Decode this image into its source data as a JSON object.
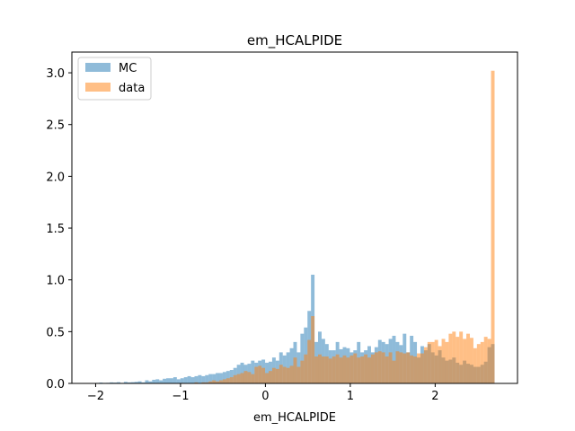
{
  "chart_data": {
    "type": "bar",
    "title": "em_HCALPIDE",
    "xlabel": "em_HCALPIDE",
    "ylabel": "",
    "xlim": [
      -2.28,
      2.97
    ],
    "ylim": [
      0,
      3.2
    ],
    "xticks": [
      -2,
      -1,
      0,
      1,
      2
    ],
    "yticks": [
      0.0,
      0.5,
      1.0,
      1.5,
      2.0,
      2.5,
      3.0
    ],
    "xtick_labels": [
      "−2",
      "−1",
      "0",
      "1",
      "2"
    ],
    "ytick_labels": [
      "0.0",
      "0.5",
      "1.0",
      "1.5",
      "2.0",
      "2.5",
      "3.0"
    ],
    "grid": false,
    "legend_position": "top-left",
    "bin_start": -2.0,
    "bin_end": 2.7,
    "series": [
      {
        "name": "MC",
        "color": "#1f77b4",
        "opacity": 0.5,
        "values": [
          0.005,
          0.008,
          0.005,
          0.006,
          0.01,
          0.008,
          0.012,
          0.005,
          0.015,
          0.01,
          0.012,
          0.015,
          0.02,
          0.01,
          0.03,
          0.02,
          0.035,
          0.04,
          0.03,
          0.045,
          0.05,
          0.05,
          0.06,
          0.04,
          0.05,
          0.06,
          0.07,
          0.06,
          0.07,
          0.08,
          0.07,
          0.08,
          0.09,
          0.09,
          0.1,
          0.1,
          0.11,
          0.12,
          0.13,
          0.15,
          0.18,
          0.2,
          0.18,
          0.19,
          0.22,
          0.2,
          0.22,
          0.23,
          0.2,
          0.21,
          0.25,
          0.22,
          0.3,
          0.27,
          0.3,
          0.34,
          0.4,
          0.3,
          0.48,
          0.54,
          0.7,
          1.05,
          0.4,
          0.5,
          0.43,
          0.38,
          0.32,
          0.32,
          0.4,
          0.33,
          0.35,
          0.34,
          0.3,
          0.32,
          0.4,
          0.3,
          0.32,
          0.36,
          0.3,
          0.35,
          0.42,
          0.4,
          0.38,
          0.43,
          0.46,
          0.4,
          0.37,
          0.48,
          0.3,
          0.46,
          0.4,
          0.25,
          0.36,
          0.32,
          0.38,
          0.3,
          0.27,
          0.32,
          0.25,
          0.22,
          0.23,
          0.25,
          0.2,
          0.18,
          0.22,
          0.19,
          0.18,
          0.16,
          0.16,
          0.18,
          0.21,
          0.35,
          0.38
        ]
      },
      {
        "name": "data",
        "color": "#ff7f0e",
        "opacity": 0.5,
        "values": [
          0,
          0,
          0,
          0,
          0,
          0,
          0,
          0,
          0,
          0,
          0,
          0,
          0,
          0,
          0,
          0,
          0,
          0,
          0,
          0,
          0,
          0,
          0,
          0,
          0.005,
          0,
          0,
          0,
          0.01,
          0,
          0.01,
          0.01,
          0.02,
          0.03,
          0.02,
          0.03,
          0.04,
          0.05,
          0.06,
          0.08,
          0.09,
          0.1,
          0.12,
          0.11,
          0.09,
          0.16,
          0.17,
          0.15,
          0.1,
          0.12,
          0.15,
          0.14,
          0.18,
          0.16,
          0.15,
          0.17,
          0.25,
          0.16,
          0.22,
          0.28,
          0.42,
          0.65,
          0.26,
          0.28,
          0.26,
          0.26,
          0.24,
          0.26,
          0.28,
          0.25,
          0.27,
          0.25,
          0.27,
          0.29,
          0.25,
          0.26,
          0.28,
          0.25,
          0.28,
          0.3,
          0.31,
          0.3,
          0.26,
          0.3,
          0.22,
          0.31,
          0.3,
          0.29,
          0.3,
          0.27,
          0.26,
          0.29,
          0.29,
          0.35,
          0.4,
          0.4,
          0.42,
          0.36,
          0.43,
          0.4,
          0.48,
          0.5,
          0.45,
          0.5,
          0.43,
          0.48,
          0.44,
          0.34,
          0.38,
          0.4,
          0.45,
          0.43,
          3.02
        ]
      }
    ]
  }
}
